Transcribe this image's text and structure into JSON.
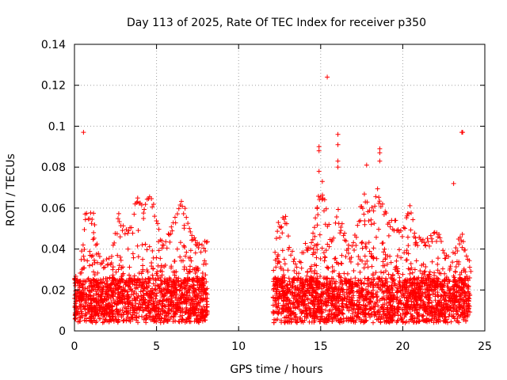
{
  "chart_data": {
    "type": "scatter",
    "title": "Day 113 of 2025, Rate Of TEC Index for receiver p350",
    "xlabel": "GPS time / hours",
    "ylabel": "ROTI / TECUs",
    "xlim": [
      0,
      25
    ],
    "ylim": [
      0,
      0.14
    ],
    "xticks": [
      0,
      5,
      10,
      15,
      20,
      25
    ],
    "yticks": [
      0,
      0.02,
      0.04,
      0.06,
      0.08,
      0.1,
      0.12,
      0.14
    ],
    "xtick_labels": [
      "0",
      "5",
      "10",
      "15",
      "20",
      "25"
    ],
    "ytick_labels": [
      "0",
      "0.02",
      "0.04",
      "0.06",
      "0.08",
      "0.1",
      "0.12",
      "0.14"
    ],
    "grid": true,
    "marker": "+",
    "color": "#ff0000",
    "series": [
      {
        "name": "ROTI",
        "segments": [
          {
            "x_start": 0.0,
            "x_end": 8.1
          },
          {
            "x_start": 12.1,
            "x_end": 24.1
          }
        ],
        "envelope": [
          {
            "x": 0.0,
            "y": 0.026
          },
          {
            "x": 0.3,
            "y": 0.03
          },
          {
            "x": 0.6,
            "y": 0.057
          },
          {
            "x": 0.9,
            "y": 0.058
          },
          {
            "x": 1.1,
            "y": 0.061
          },
          {
            "x": 1.3,
            "y": 0.045
          },
          {
            "x": 1.7,
            "y": 0.035
          },
          {
            "x": 2.2,
            "y": 0.038
          },
          {
            "x": 2.7,
            "y": 0.059
          },
          {
            "x": 3.1,
            "y": 0.05
          },
          {
            "x": 3.5,
            "y": 0.052
          },
          {
            "x": 3.8,
            "y": 0.071
          },
          {
            "x": 4.1,
            "y": 0.062
          },
          {
            "x": 4.5,
            "y": 0.069
          },
          {
            "x": 4.8,
            "y": 0.064
          },
          {
            "x": 5.2,
            "y": 0.047
          },
          {
            "x": 5.6,
            "y": 0.046
          },
          {
            "x": 6.0,
            "y": 0.055
          },
          {
            "x": 6.5,
            "y": 0.066
          },
          {
            "x": 6.9,
            "y": 0.056
          },
          {
            "x": 7.3,
            "y": 0.045
          },
          {
            "x": 7.7,
            "y": 0.043
          },
          {
            "x": 8.1,
            "y": 0.047
          },
          {
            "x": 12.1,
            "y": 0.035
          },
          {
            "x": 12.4,
            "y": 0.055
          },
          {
            "x": 12.8,
            "y": 0.057
          },
          {
            "x": 13.2,
            "y": 0.04
          },
          {
            "x": 13.6,
            "y": 0.032
          },
          {
            "x": 14.0,
            "y": 0.043
          },
          {
            "x": 14.4,
            "y": 0.047
          },
          {
            "x": 14.8,
            "y": 0.068
          },
          {
            "x": 15.2,
            "y": 0.067
          },
          {
            "x": 15.6,
            "y": 0.044
          },
          {
            "x": 16.0,
            "y": 0.06
          },
          {
            "x": 16.4,
            "y": 0.05
          },
          {
            "x": 16.8,
            "y": 0.038
          },
          {
            "x": 17.2,
            "y": 0.052
          },
          {
            "x": 17.6,
            "y": 0.068
          },
          {
            "x": 18.0,
            "y": 0.058
          },
          {
            "x": 18.4,
            "y": 0.07
          },
          {
            "x": 18.8,
            "y": 0.062
          },
          {
            "x": 19.2,
            "y": 0.055
          },
          {
            "x": 19.6,
            "y": 0.055
          },
          {
            "x": 20.0,
            "y": 0.05
          },
          {
            "x": 20.4,
            "y": 0.063
          },
          {
            "x": 20.8,
            "y": 0.045
          },
          {
            "x": 21.2,
            "y": 0.048
          },
          {
            "x": 21.6,
            "y": 0.046
          },
          {
            "x": 22.0,
            "y": 0.049
          },
          {
            "x": 22.4,
            "y": 0.045
          },
          {
            "x": 22.8,
            "y": 0.035
          },
          {
            "x": 23.2,
            "y": 0.043
          },
          {
            "x": 23.6,
            "y": 0.048
          },
          {
            "x": 24.1,
            "y": 0.032
          }
        ],
        "outliers": [
          {
            "x": 0.55,
            "y": 0.097
          },
          {
            "x": 15.4,
            "y": 0.124
          },
          {
            "x": 14.9,
            "y": 0.09
          },
          {
            "x": 14.9,
            "y": 0.088
          },
          {
            "x": 14.9,
            "y": 0.078
          },
          {
            "x": 15.1,
            "y": 0.073
          },
          {
            "x": 16.05,
            "y": 0.096
          },
          {
            "x": 16.05,
            "y": 0.091
          },
          {
            "x": 16.05,
            "y": 0.083
          },
          {
            "x": 16.05,
            "y": 0.08
          },
          {
            "x": 17.8,
            "y": 0.081
          },
          {
            "x": 18.6,
            "y": 0.089
          },
          {
            "x": 18.6,
            "y": 0.087
          },
          {
            "x": 18.6,
            "y": 0.083
          },
          {
            "x": 23.1,
            "y": 0.072
          },
          {
            "x": 23.6,
            "y": 0.097
          },
          {
            "x": 23.65,
            "y": 0.097
          }
        ]
      }
    ]
  }
}
